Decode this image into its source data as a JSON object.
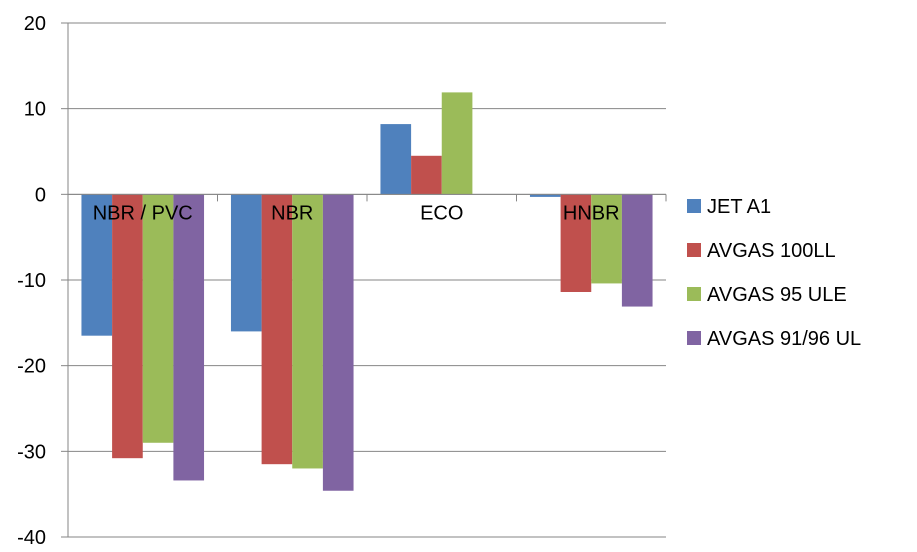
{
  "chart_data": {
    "type": "bar",
    "title": "",
    "xlabel": "",
    "ylabel": "",
    "categories": [
      "NBR / PVC",
      "NBR",
      "ECO",
      "HNBR"
    ],
    "series": [
      {
        "name": "JET A1",
        "color": "#4F81BD",
        "values": [
          -16.5,
          -16.0,
          8.2,
          -0.3
        ]
      },
      {
        "name": "AVGAS 100LL",
        "color": "#C0504D",
        "values": [
          -30.8,
          -31.5,
          4.5,
          -11.4
        ]
      },
      {
        "name": "AVGAS 95 ULE",
        "color": "#9BBB59",
        "values": [
          -29.0,
          -32.0,
          11.9,
          -10.4
        ]
      },
      {
        "name": "AVGAS 91/96 UL",
        "color": "#8064A2",
        "values": [
          -33.4,
          -34.6,
          0,
          -13.1
        ]
      }
    ],
    "ylim": [
      -40,
      20
    ],
    "yticks": [
      20,
      10,
      0,
      -10,
      -20,
      -30,
      -40
    ],
    "grid": true,
    "legend": "right"
  }
}
